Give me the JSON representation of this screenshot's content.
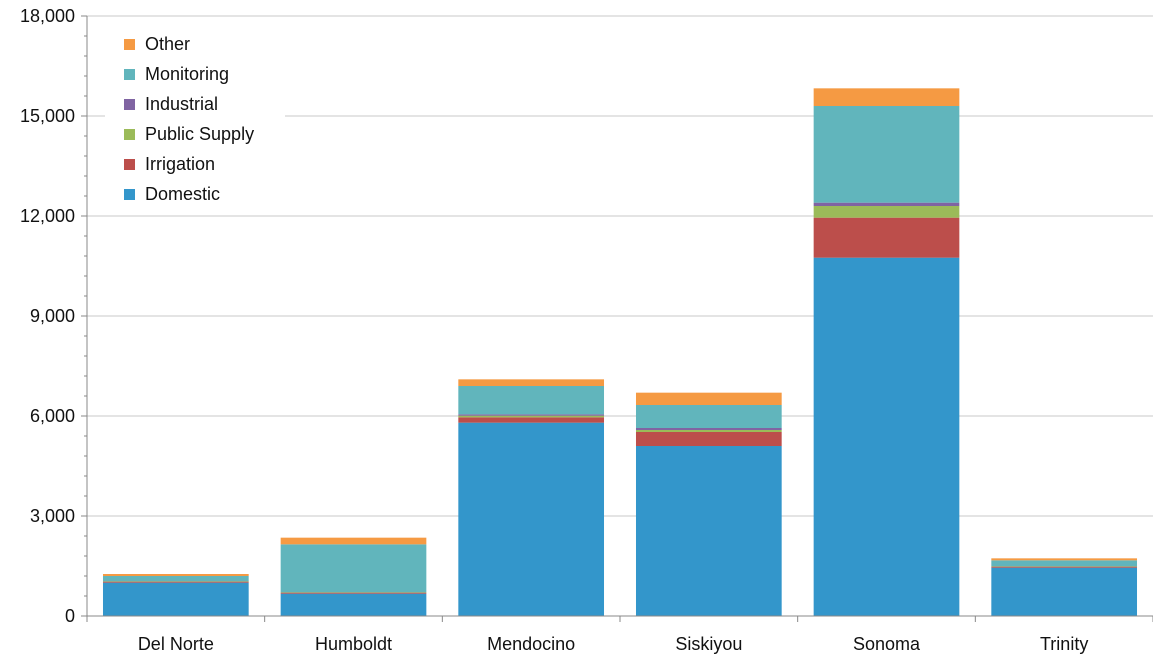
{
  "chart_data": {
    "type": "bar",
    "stacked": true,
    "categories": [
      "Del Norte",
      "Humboldt",
      "Mendocino",
      "Siskiyou",
      "Sonoma",
      "Trinity"
    ],
    "series": [
      {
        "name": "Domestic",
        "color": "#3396cb",
        "values": [
          1000,
          670,
          5800,
          5100,
          10750,
          1450
        ]
      },
      {
        "name": "Irrigation",
        "color": "#bc4e4b",
        "values": [
          20,
          20,
          160,
          420,
          1200,
          20
        ]
      },
      {
        "name": "Public Supply",
        "color": "#9bbb59",
        "values": [
          20,
          20,
          50,
          60,
          350,
          20
        ]
      },
      {
        "name": "Industrial",
        "color": "#8064a2",
        "values": [
          10,
          10,
          40,
          60,
          100,
          10
        ]
      },
      {
        "name": "Monitoring",
        "color": "#61b5bc",
        "values": [
          150,
          1430,
          850,
          690,
          2900,
          170
        ]
      },
      {
        "name": "Other",
        "color": "#f59a43",
        "values": [
          60,
          200,
          200,
          370,
          530,
          60
        ]
      }
    ],
    "ylim": [
      0,
      18000
    ],
    "yticks": [
      0,
      3000,
      6000,
      9000,
      12000,
      15000,
      18000
    ],
    "ytick_labels": [
      "0",
      "3,000",
      "6,000",
      "9,000",
      "12,000",
      "15,000",
      "18,000"
    ],
    "grid": true,
    "legend_position": "top-left",
    "legend_order": [
      "Other",
      "Monitoring",
      "Industrial",
      "Public Supply",
      "Irrigation",
      "Domestic"
    ],
    "title": "",
    "xlabel": "",
    "ylabel": ""
  }
}
